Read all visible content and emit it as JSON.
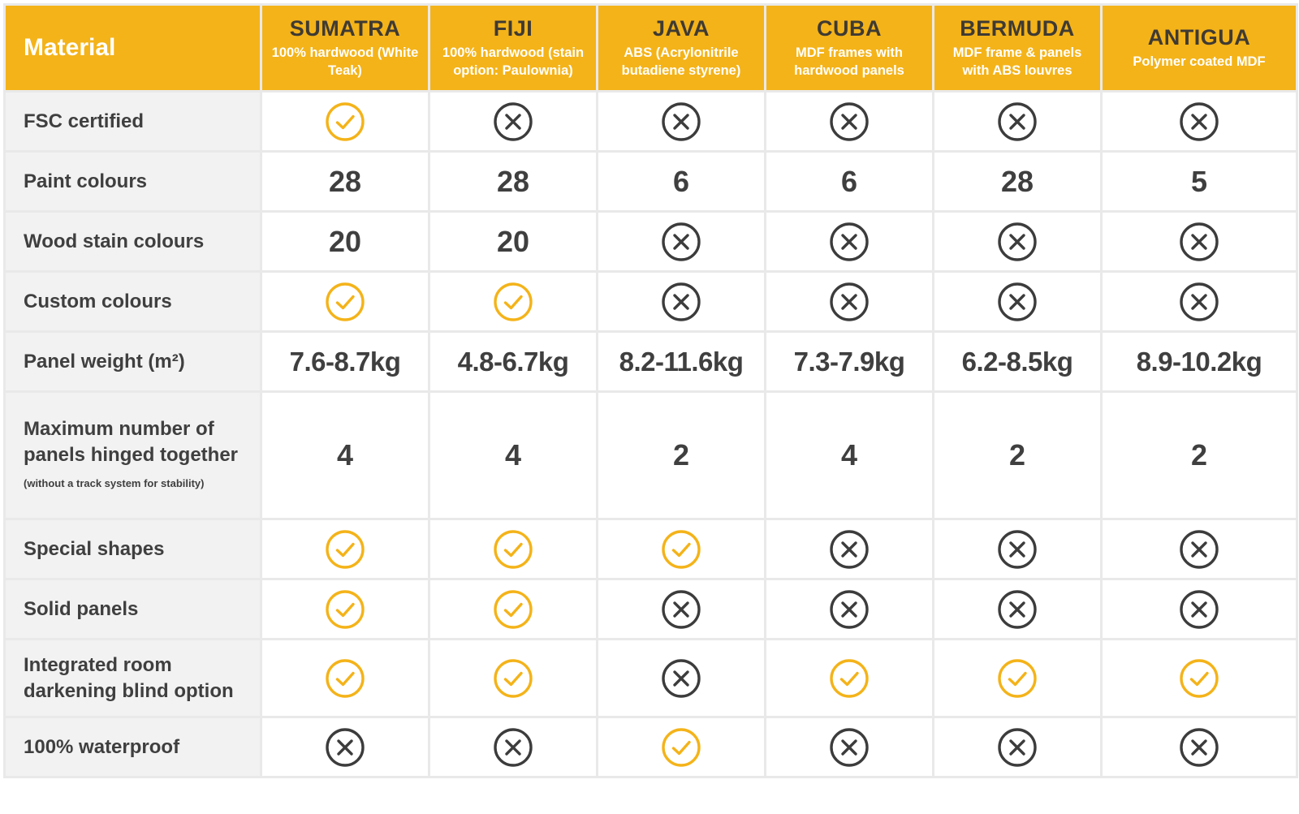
{
  "header": {
    "corner": "Material",
    "columns": [
      {
        "name": "SUMATRA",
        "sub": "100% hardwood (White Teak)"
      },
      {
        "name": "FIJI",
        "sub": "100% hardwood (stain option: Paulownia)"
      },
      {
        "name": "JAVA",
        "sub": "ABS (Acrylonitrile butadiene styrene)"
      },
      {
        "name": "CUBA",
        "sub": "MDF frames with hardwood panels"
      },
      {
        "name": "BERMUDA",
        "sub": "MDF frame & panels with ABS louvres"
      },
      {
        "name": "ANTIGUA",
        "sub": "Polymer coated MDF"
      }
    ]
  },
  "rows": [
    {
      "label": "FSC certified",
      "cells": [
        "yes",
        "no",
        "no",
        "no",
        "no",
        "no"
      ]
    },
    {
      "label": "Paint colours",
      "cells": [
        "28",
        "28",
        "6",
        "6",
        "28",
        "5"
      ]
    },
    {
      "label": "Wood stain colours",
      "cells": [
        "20",
        "20",
        "no",
        "no",
        "no",
        "no"
      ]
    },
    {
      "label": "Custom colours",
      "cells": [
        "yes",
        "yes",
        "no",
        "no",
        "no",
        "no"
      ]
    },
    {
      "label": "Panel weight (m²)",
      "cells": [
        "7.6-8.7kg",
        "4.8-6.7kg",
        "8.2-11.6kg",
        "7.3-7.9kg",
        "6.2-8.5kg",
        "8.9-10.2kg"
      ]
    },
    {
      "label": "Maximum number of panels hinged together",
      "label_note": "(without a track system for stability)",
      "cells": [
        "4",
        "4",
        "2",
        "4",
        "2",
        "2"
      ]
    },
    {
      "label": "Special shapes",
      "cells": [
        "yes",
        "yes",
        "yes",
        "no",
        "no",
        "no"
      ]
    },
    {
      "label": "Solid panels",
      "cells": [
        "yes",
        "yes",
        "no",
        "no",
        "no",
        "no"
      ]
    },
    {
      "label": "Integrated room darkening blind option",
      "cells": [
        "yes",
        "yes",
        "no",
        "yes",
        "yes",
        "yes"
      ]
    },
    {
      "label": "100% waterproof",
      "cells": [
        "no",
        "no",
        "yes",
        "no",
        "no",
        "no"
      ]
    }
  ],
  "icons": {
    "yes": "check-circle-icon",
    "no": "cross-circle-icon"
  },
  "colors": {
    "accent": "#f4b319",
    "icon_yes": "#f4b319",
    "icon_no": "#3c3c3c",
    "header_text": "#3f3a33",
    "label_bg": "#f2f2f2",
    "grid": "#e9e9e9"
  }
}
